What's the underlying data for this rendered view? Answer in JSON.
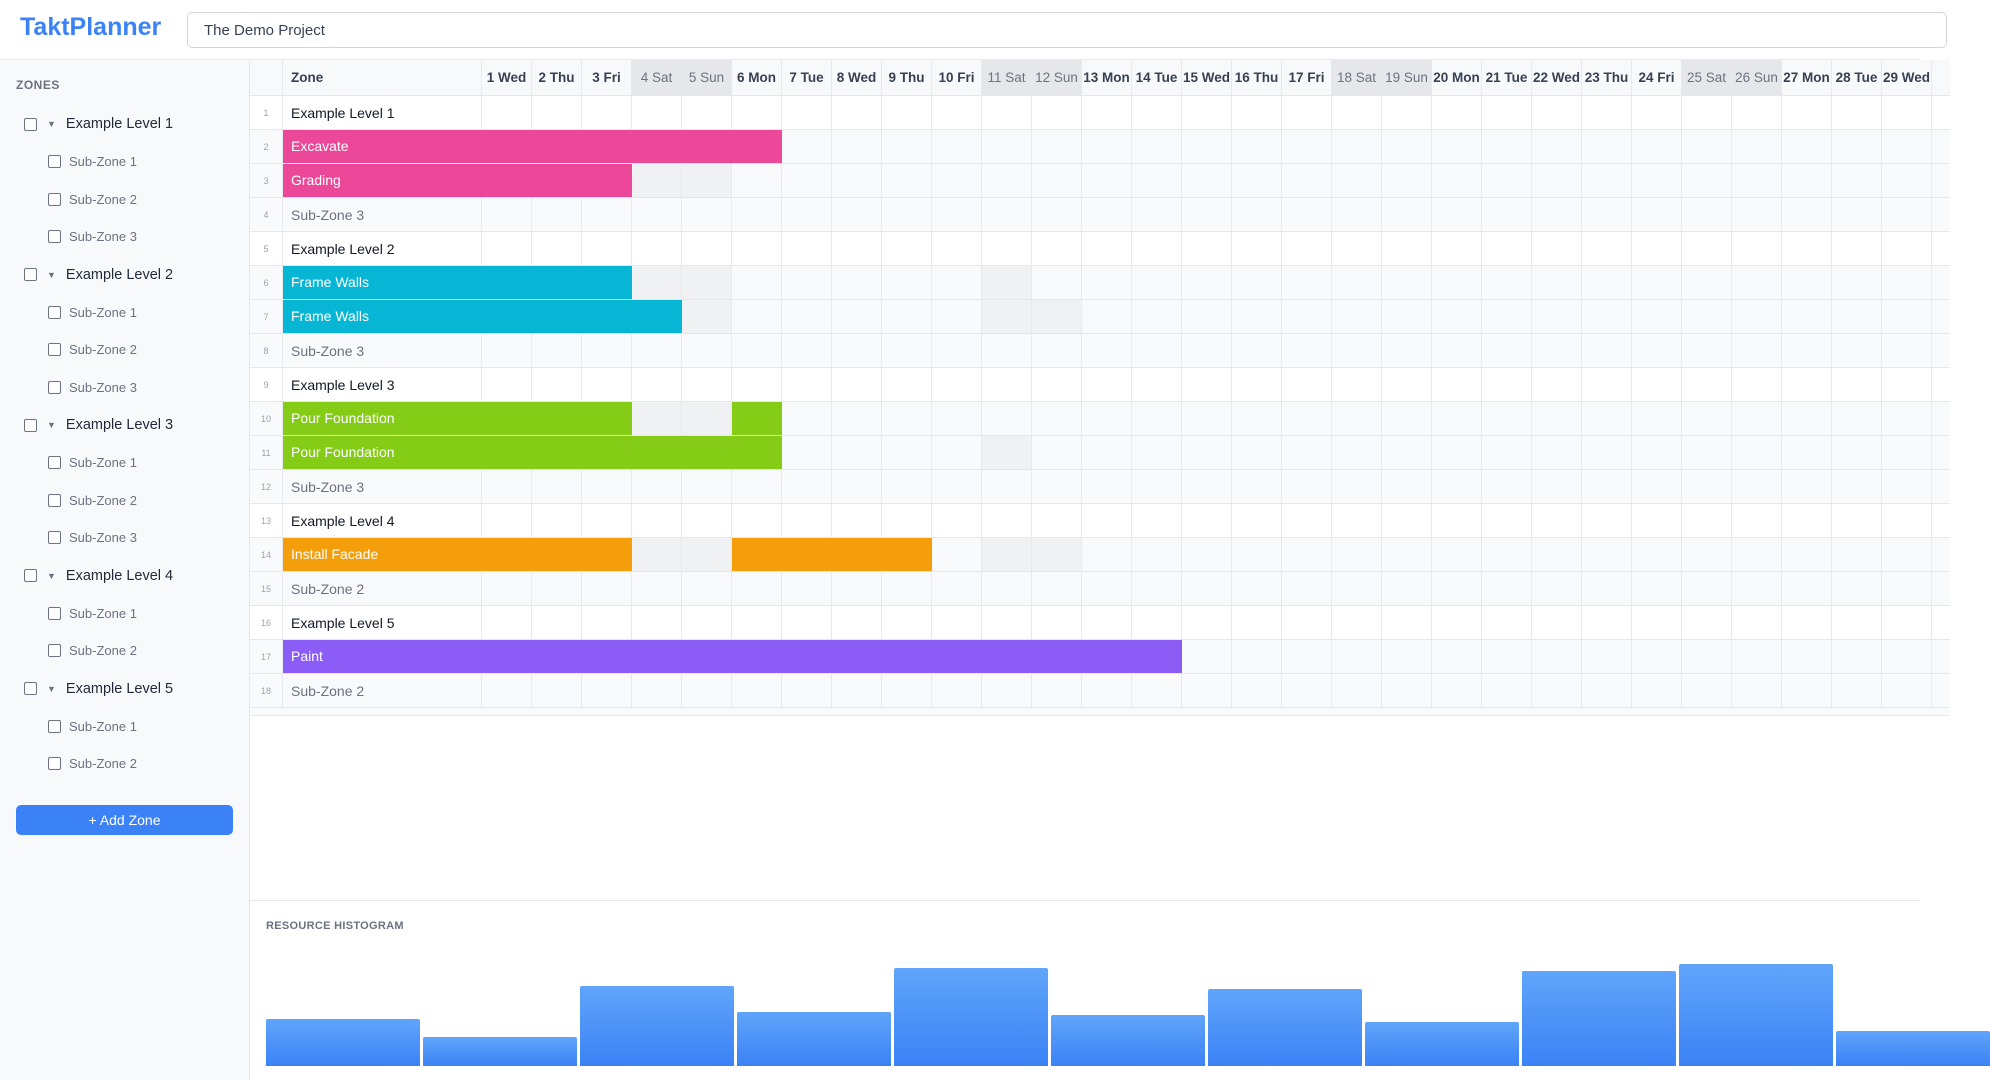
{
  "app": {
    "title": "TaktPlanner",
    "project": "The Demo Project"
  },
  "sidebar": {
    "heading": "ZONES",
    "add_label": "+ Add Zone",
    "items": [
      {
        "label": "Example Level 1",
        "level": true
      },
      {
        "label": "Sub-Zone 1"
      },
      {
        "label": "Sub-Zone 2"
      },
      {
        "label": "Sub-Zone 3"
      },
      {
        "label": "Example Level 2",
        "level": true
      },
      {
        "label": "Sub-Zone 1"
      },
      {
        "label": "Sub-Zone 2"
      },
      {
        "label": "Sub-Zone 3"
      },
      {
        "label": "Example Level 3",
        "level": true
      },
      {
        "label": "Sub-Zone 1"
      },
      {
        "label": "Sub-Zone 2"
      },
      {
        "label": "Sub-Zone 3"
      },
      {
        "label": "Example Level 4",
        "level": true
      },
      {
        "label": "Sub-Zone 1"
      },
      {
        "label": "Sub-Zone 2"
      },
      {
        "label": "Example Level 5",
        "level": true
      },
      {
        "label": "Sub-Zone 1"
      },
      {
        "label": "Sub-Zone 2"
      }
    ]
  },
  "grid": {
    "zone_header": "Zone",
    "days": [
      {
        "label": "1 Wed"
      },
      {
        "label": "2 Thu"
      },
      {
        "label": "3 Fri"
      },
      {
        "label": "4 Sat",
        "weekend": true
      },
      {
        "label": "5 Sun",
        "weekend": true
      },
      {
        "label": "6 Mon"
      },
      {
        "label": "7 Tue"
      },
      {
        "label": "8 Wed"
      },
      {
        "label": "9 Thu"
      },
      {
        "label": "10 Fri"
      },
      {
        "label": "11 Sat",
        "weekend": true
      },
      {
        "label": "12 Sun",
        "weekend": true
      },
      {
        "label": "13 Mon"
      },
      {
        "label": "14 Tue"
      },
      {
        "label": "15 Wed"
      },
      {
        "label": "16 Thu"
      },
      {
        "label": "17 Fri"
      },
      {
        "label": "18 Sat",
        "weekend": true
      },
      {
        "label": "19 Sun",
        "weekend": true
      },
      {
        "label": "20 Mon"
      },
      {
        "label": "21 Tue"
      },
      {
        "label": "22 Wed"
      },
      {
        "label": "23 Thu"
      },
      {
        "label": "24 Fri"
      },
      {
        "label": "25 Sat",
        "weekend": true
      },
      {
        "label": "26 Sun",
        "weekend": true
      },
      {
        "label": "27 Mon"
      },
      {
        "label": "28 Tue"
      },
      {
        "label": "29 Wed"
      }
    ],
    "rows": [
      {
        "num": "1",
        "zone": "Example Level 1",
        "type": "level"
      },
      {
        "num": "2",
        "zone": "Excavate",
        "type": "task",
        "color": "#ec4899",
        "spans": [
          [
            1,
            6
          ]
        ]
      },
      {
        "num": "3",
        "zone": "Grading",
        "type": "task",
        "color": "#ec4899",
        "spans": [
          [
            1,
            3
          ]
        ],
        "shaded": [
          4,
          5
        ]
      },
      {
        "num": "4",
        "zone": "Sub-Zone 3",
        "type": "sub"
      },
      {
        "num": "5",
        "zone": "Example Level 2",
        "type": "level"
      },
      {
        "num": "6",
        "zone": "Frame Walls",
        "type": "task",
        "color": "#06b6d4",
        "spans": [
          [
            1,
            3
          ]
        ],
        "shaded": [
          4,
          5,
          11
        ]
      },
      {
        "num": "7",
        "zone": "Frame Walls",
        "type": "task",
        "color": "#06b6d4",
        "spans": [
          [
            1,
            4
          ]
        ],
        "shaded": [
          5,
          11,
          12
        ]
      },
      {
        "num": "8",
        "zone": "Sub-Zone 3",
        "type": "sub"
      },
      {
        "num": "9",
        "zone": "Example Level 3",
        "type": "level"
      },
      {
        "num": "10",
        "zone": "Pour Foundation",
        "type": "task",
        "color": "#84cc16",
        "spans": [
          [
            1,
            3
          ],
          [
            6,
            6
          ]
        ],
        "shaded": [
          4,
          5
        ]
      },
      {
        "num": "11",
        "zone": "Pour Foundation",
        "type": "task",
        "color": "#84cc16",
        "spans": [
          [
            1,
            6
          ]
        ],
        "shaded": [
          11
        ]
      },
      {
        "num": "12",
        "zone": "Sub-Zone 3",
        "type": "sub"
      },
      {
        "num": "13",
        "zone": "Example Level 4",
        "type": "level"
      },
      {
        "num": "14",
        "zone": "Install Facade",
        "type": "task",
        "color": "#f59e0b",
        "spans": [
          [
            1,
            3
          ],
          [
            6,
            9
          ]
        ],
        "shaded": [
          4,
          5,
          11,
          12
        ]
      },
      {
        "num": "15",
        "zone": "Sub-Zone 2",
        "type": "sub"
      },
      {
        "num": "16",
        "zone": "Example Level 5",
        "type": "level"
      },
      {
        "num": "17",
        "zone": "Paint",
        "type": "task",
        "color": "#8b5cf6",
        "spans": [
          [
            1,
            14
          ]
        ]
      },
      {
        "num": "18",
        "zone": "Sub-Zone 2",
        "type": "sub"
      }
    ]
  },
  "histogram": {
    "title": "RESOURCE HISTOGRAM",
    "values": [
      47,
      29,
      80,
      54,
      98,
      51,
      77,
      44,
      95,
      102,
      35
    ],
    "color": "#3b82f6"
  }
}
